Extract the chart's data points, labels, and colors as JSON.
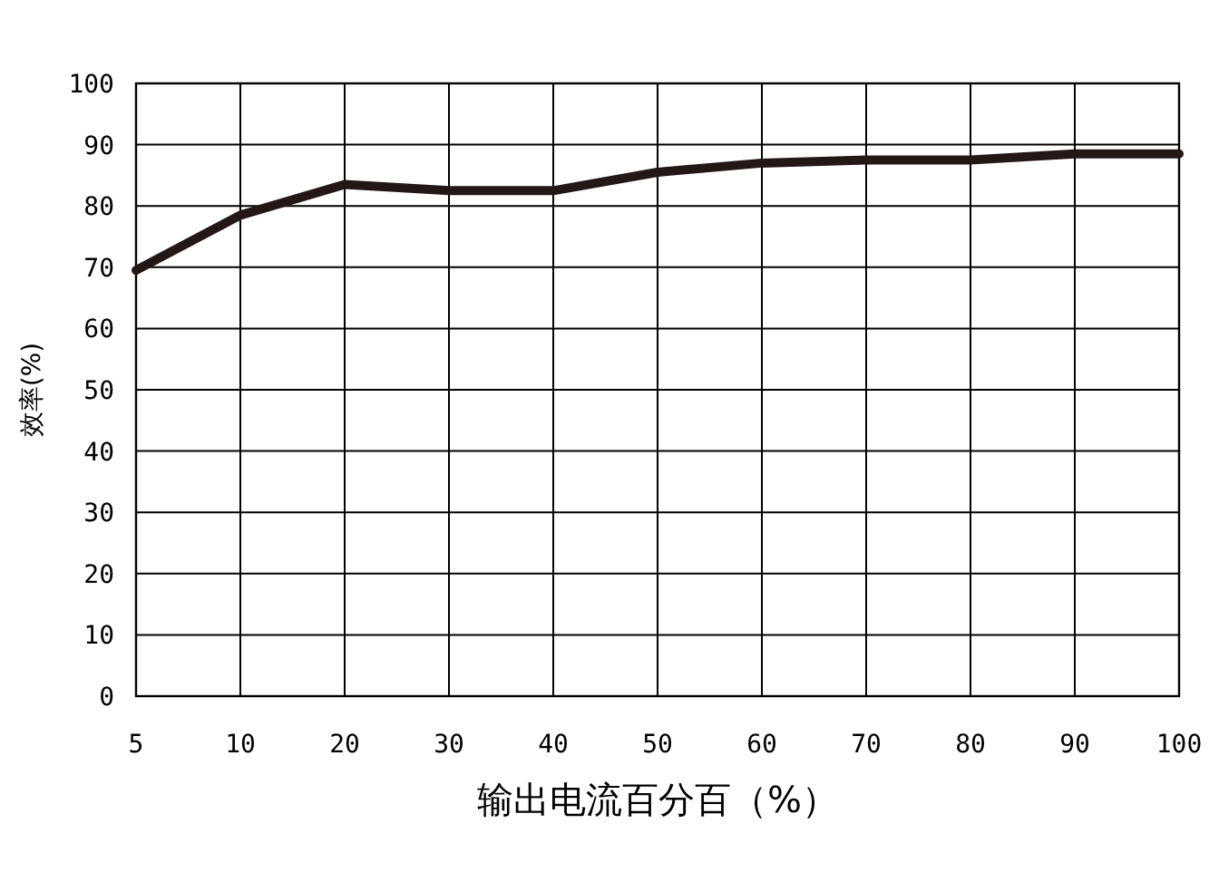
{
  "chart_data": {
    "type": "line",
    "xlabel": "输出电流百分百（%）",
    "ylabel": "效率(%)",
    "categories": [
      "5",
      "10",
      "20",
      "30",
      "40",
      "50",
      "60",
      "70",
      "80",
      "90",
      "100"
    ],
    "values": [
      69.5,
      78.5,
      83.5,
      82.5,
      82.5,
      85.5,
      87,
      87.5,
      87.5,
      88.5,
      88.5
    ],
    "color": "#231815",
    "ylim": [
      0,
      100
    ],
    "yticks": [
      0,
      10,
      20,
      30,
      40,
      50,
      60,
      70,
      80,
      90,
      100
    ],
    "grid": true
  }
}
